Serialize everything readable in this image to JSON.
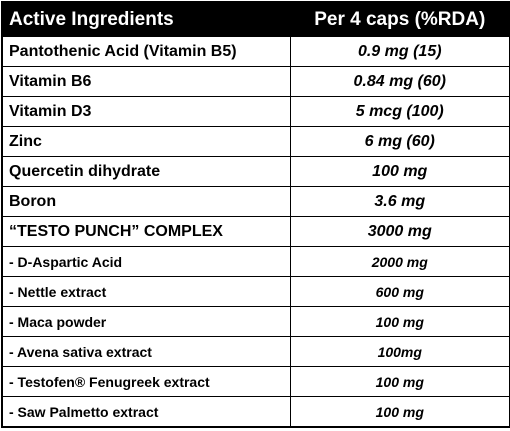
{
  "table": {
    "header": [
      "Active Ingredients",
      "Per 4 caps (%RDA)"
    ],
    "rows": [
      [
        "Pantothenic Acid (Vitamin B5)",
        "0.9 mg (15)"
      ],
      [
        "Vitamin B6",
        "0.84 mg (60)"
      ],
      [
        "Vitamin D3",
        "5 mcg (100)"
      ],
      [
        "Zinc",
        "6 mg (60)"
      ],
      [
        "Quercetin dihydrate",
        "100 mg"
      ],
      [
        "Boron",
        "3.6 mg"
      ],
      [
        "“TESTO PUNCH” COMPLEX",
        "3000 mg"
      ],
      [
        "- D-Aspartic Acid",
        "2000 mg"
      ],
      [
        "- Nettle extract",
        "600 mg"
      ],
      [
        "- Maca powder",
        "100 mg"
      ],
      [
        "- Avena sativa extract",
        "100mg"
      ],
      [
        "- Testofen® Fenugreek extract",
        "100 mg"
      ],
      [
        "- Saw Palmetto extract",
        "100 mg"
      ]
    ]
  }
}
